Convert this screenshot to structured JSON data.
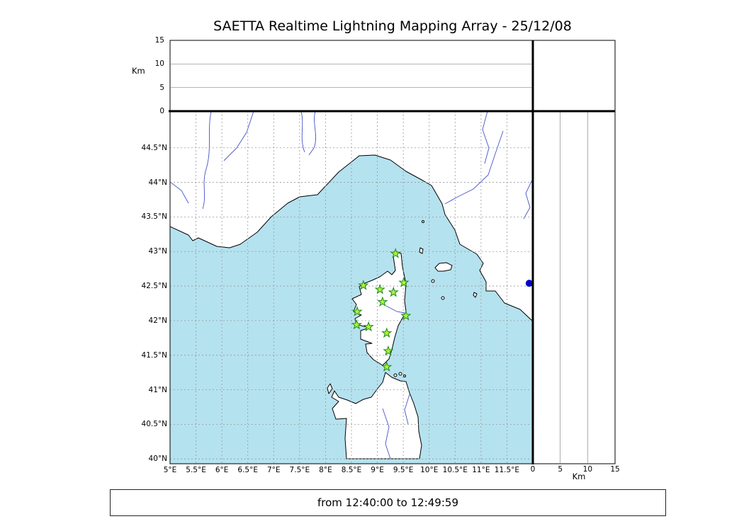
{
  "title": "SAETTA Realtime Lightning Mapping Array - 25/12/08",
  "footer": {
    "time_range": "from 12:40:00 to 12:49:59"
  },
  "colors": {
    "sea": "#b5e2ef",
    "land": "#ffffff",
    "river": "#4553c8",
    "grid": "#999999",
    "coast": "#000000",
    "star_fill": "#aef23c",
    "star_edge": "#1e8a1e",
    "event_dot": "#0000c4"
  },
  "axes": {
    "longitude": {
      "min": 5,
      "max": 12,
      "ticks": [
        {
          "value": 5,
          "label": "5°E"
        },
        {
          "value": 5.5,
          "label": "5.5°E"
        },
        {
          "value": 6,
          "label": "6°E"
        },
        {
          "value": 6.5,
          "label": "6.5°E"
        },
        {
          "value": 7,
          "label": "7°E"
        },
        {
          "value": 7.5,
          "label": "7.5°E"
        },
        {
          "value": 8,
          "label": "8°E"
        },
        {
          "value": 8.5,
          "label": "8.5°E"
        },
        {
          "value": 9,
          "label": "9°E"
        },
        {
          "value": 9.5,
          "label": "9.5°E"
        },
        {
          "value": 10,
          "label": "10°E"
        },
        {
          "value": 10.5,
          "label": "10.5°E"
        },
        {
          "value": 11,
          "label": "11°E"
        },
        {
          "value": 11.5,
          "label": "11.5°E"
        }
      ]
    },
    "latitude": {
      "min": 39.93,
      "max": 45.03,
      "ticks": [
        {
          "value": 40,
          "label": "40°N"
        },
        {
          "value": 40.5,
          "label": "40.5°N"
        },
        {
          "value": 41,
          "label": "41°N"
        },
        {
          "value": 41.5,
          "label": "41.5°N"
        },
        {
          "value": 42,
          "label": "42°N"
        },
        {
          "value": 42.5,
          "label": "42.5°N"
        },
        {
          "value": 43,
          "label": "43°N"
        },
        {
          "value": 43.5,
          "label": "43.5°N"
        },
        {
          "value": 44,
          "label": "44°N"
        },
        {
          "value": 44.5,
          "label": "44.5°N"
        }
      ]
    },
    "altitude_km": {
      "min": 0,
      "max": 15,
      "unit_label": "Km",
      "ticks": [
        {
          "value": 0,
          "label": "0"
        },
        {
          "value": 5,
          "label": "5"
        },
        {
          "value": 10,
          "label": "10"
        },
        {
          "value": 15,
          "label": "15"
        }
      ],
      "gridlines": [
        5,
        10
      ]
    }
  },
  "map": {
    "stations": [
      {
        "lon": 9.35,
        "lat": 42.97
      },
      {
        "lon": 8.73,
        "lat": 42.51
      },
      {
        "lon": 9.05,
        "lat": 42.45
      },
      {
        "lon": 9.51,
        "lat": 42.55
      },
      {
        "lon": 9.31,
        "lat": 42.41
      },
      {
        "lon": 9.1,
        "lat": 42.27
      },
      {
        "lon": 8.61,
        "lat": 42.13
      },
      {
        "lon": 9.55,
        "lat": 42.07
      },
      {
        "lon": 8.6,
        "lat": 41.94
      },
      {
        "lon": 8.83,
        "lat": 41.91
      },
      {
        "lon": 9.18,
        "lat": 41.82
      },
      {
        "lon": 9.21,
        "lat": 41.56
      },
      {
        "lon": 9.18,
        "lat": 41.33
      }
    ],
    "events": [
      {
        "lon": 11.93,
        "lat": 42.54
      }
    ]
  }
}
